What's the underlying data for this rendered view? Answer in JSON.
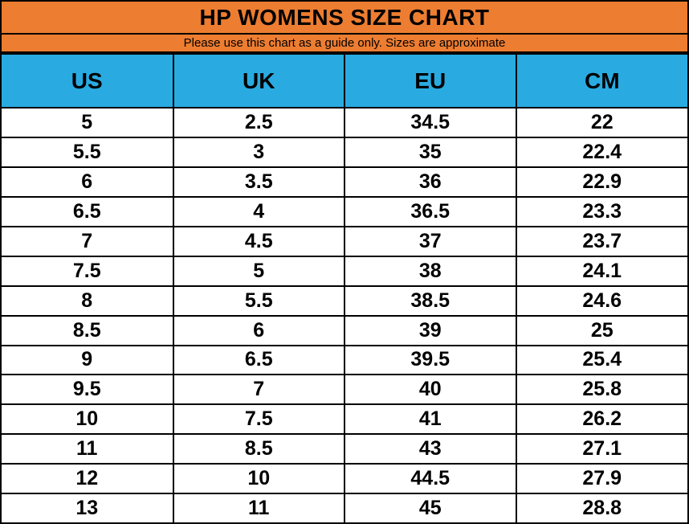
{
  "title": "HP WOMENS SIZE CHART",
  "subtitle": "Please use this chart as a guide only. Sizes are approximate",
  "colors": {
    "orange": "#ED7D31",
    "blue": "#29ABE2",
    "border": "#000000",
    "text": "#000000",
    "rowbg": "#FFFFFF"
  },
  "chart_data": {
    "type": "table",
    "title": "HP WOMENS SIZE CHART",
    "subtitle": "Please use this chart as a guide only. Sizes are approximate",
    "columns": [
      "US",
      "UK",
      "EU",
      "CM"
    ],
    "rows": [
      [
        "5",
        "2.5",
        "34.5",
        "22"
      ],
      [
        "5.5",
        "3",
        "35",
        "22.4"
      ],
      [
        "6",
        "3.5",
        "36",
        "22.9"
      ],
      [
        "6.5",
        "4",
        "36.5",
        "23.3"
      ],
      [
        "7",
        "4.5",
        "37",
        "23.7"
      ],
      [
        "7.5",
        "5",
        "38",
        "24.1"
      ],
      [
        "8",
        "5.5",
        "38.5",
        "24.6"
      ],
      [
        "8.5",
        "6",
        "39",
        "25"
      ],
      [
        "9",
        "6.5",
        "39.5",
        "25.4"
      ],
      [
        "9.5",
        "7",
        "40",
        "25.8"
      ],
      [
        "10",
        "7.5",
        "41",
        "26.2"
      ],
      [
        "11",
        "8.5",
        "43",
        "27.1"
      ],
      [
        "12",
        "10",
        "44.5",
        "27.9"
      ],
      [
        "13",
        "11",
        "45",
        "28.8"
      ]
    ],
    "layout": {
      "header_fill": "#29ABE2",
      "title_fill": "#ED7D31",
      "grid": "on",
      "text_align": "center"
    }
  }
}
